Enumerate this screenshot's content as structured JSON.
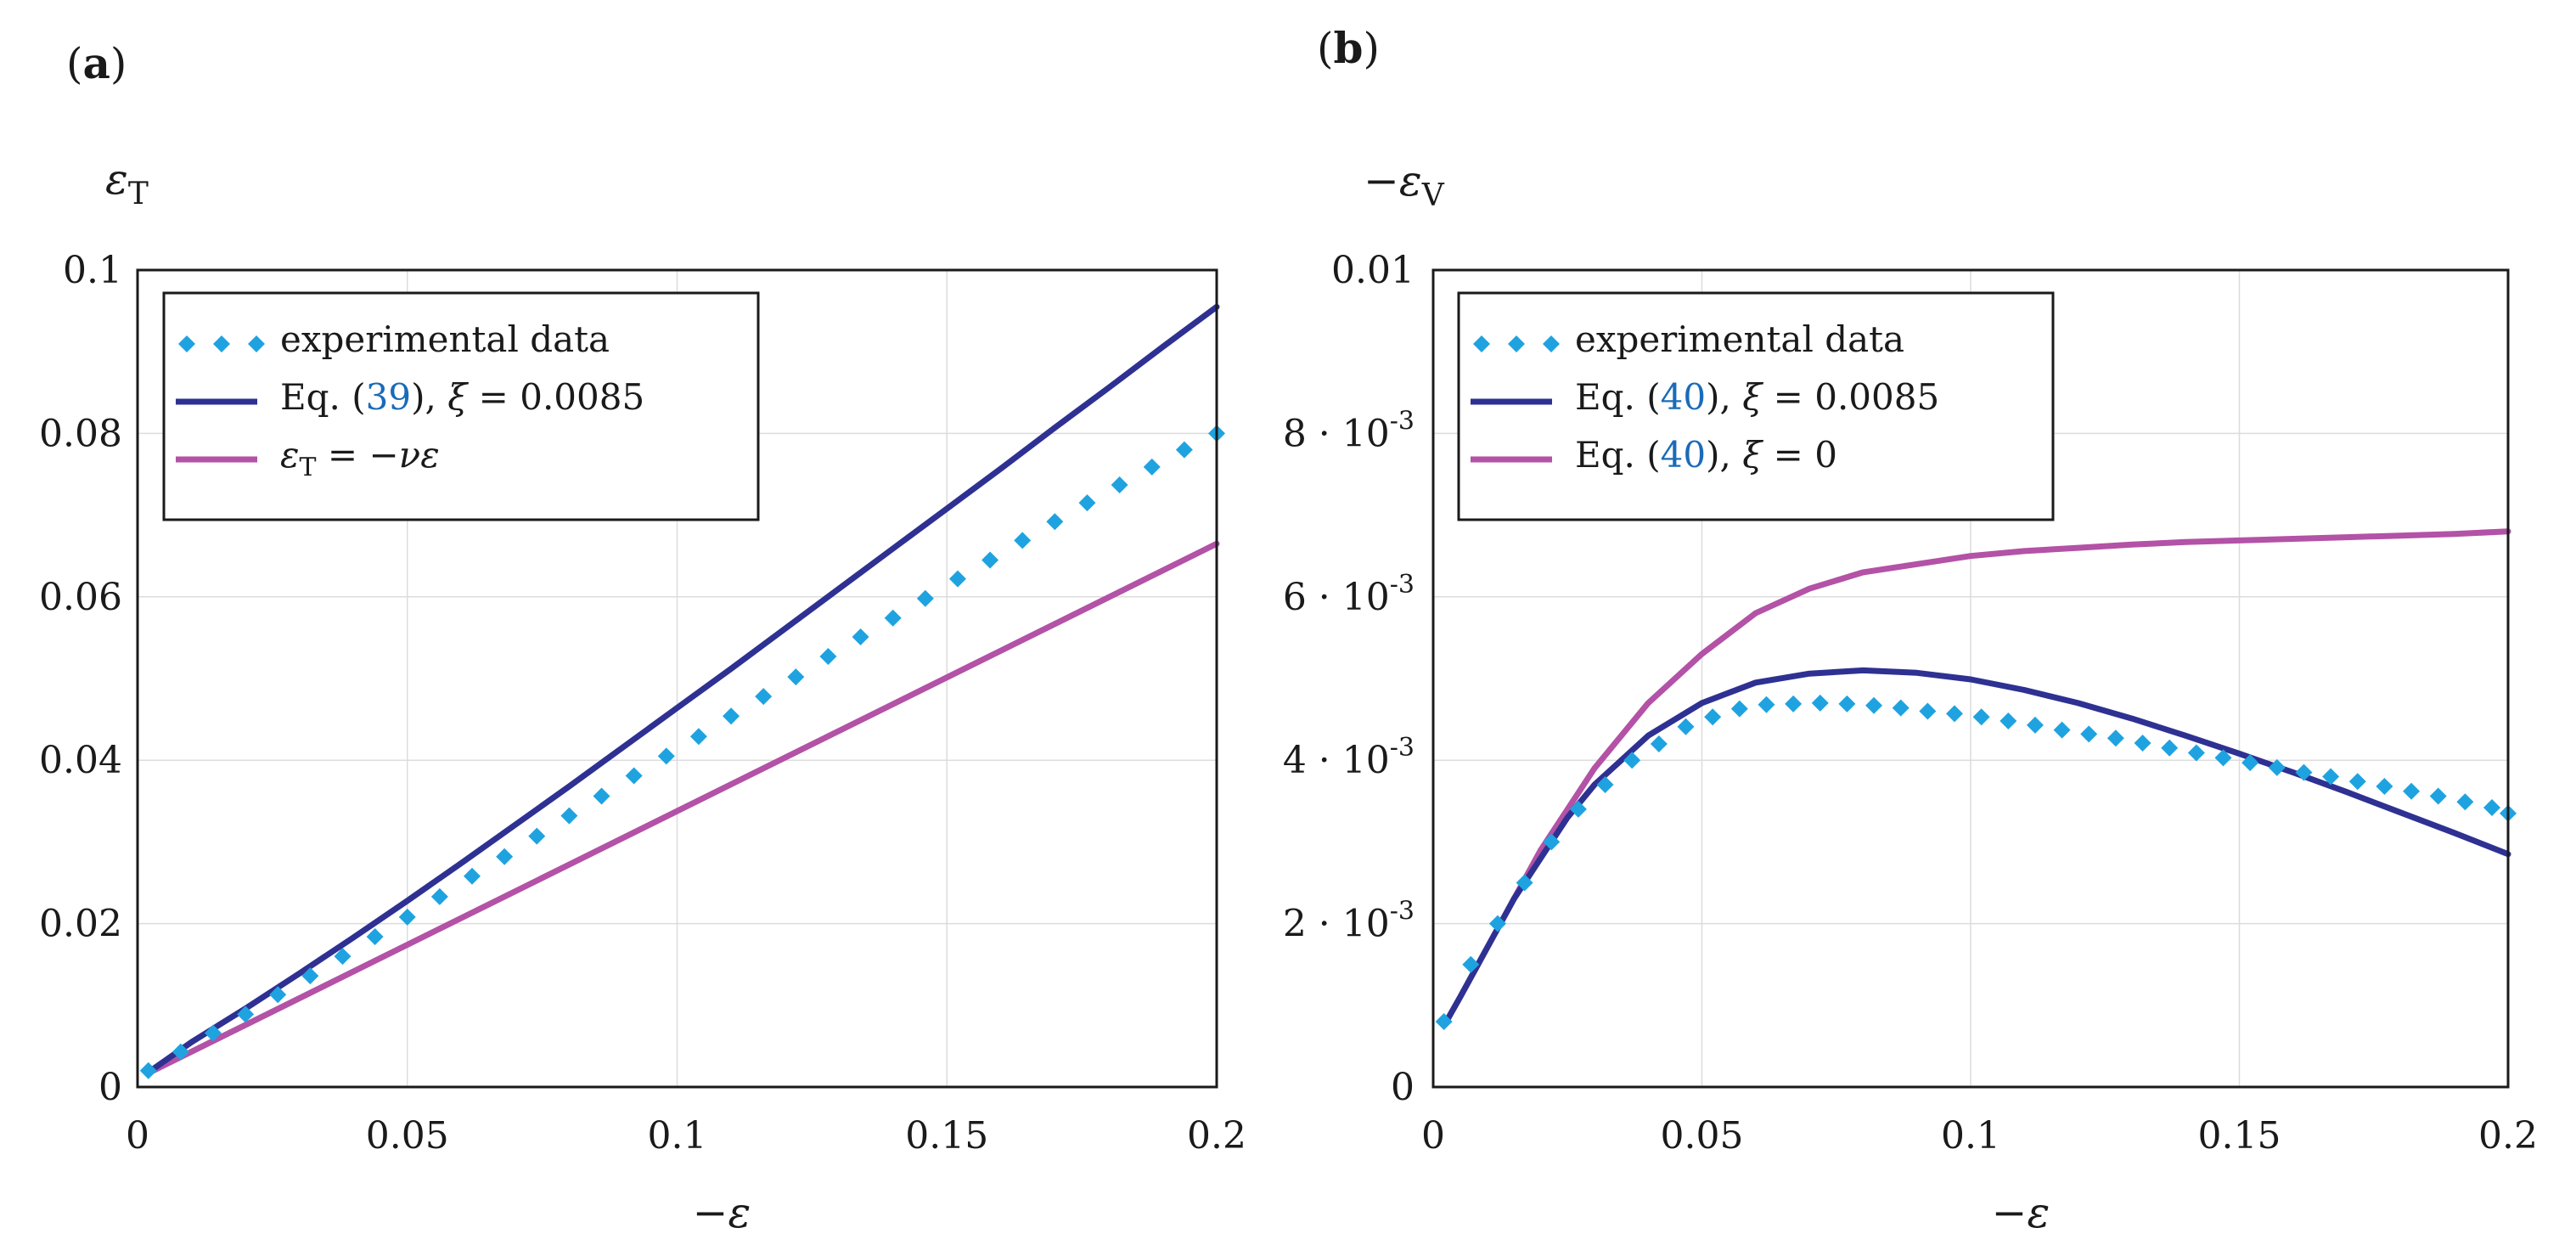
{
  "panels": [
    {
      "id": "a",
      "label_open": "(",
      "label_letter": "a",
      "label_close": ")",
      "ylabel_main": "ε",
      "ylabel_sub": "T",
      "xlabel": "−ε",
      "colors": {
        "experimental": "#1fa3e0",
        "fit": "#2e3192",
        "reference": "#b352a6"
      },
      "legend": {
        "entries": [
          {
            "key": "experimental",
            "parts": [
              {
                "text": "experimental data",
                "style": "plain"
              }
            ]
          },
          {
            "key": "fit",
            "parts": [
              {
                "text": "Eq. (",
                "style": "plain"
              },
              {
                "text": "39",
                "style": "ref"
              },
              {
                "text": "), ",
                "style": "plain"
              },
              {
                "text": "ξ",
                "style": "ital"
              },
              {
                "text": " = 0.0085",
                "style": "plain"
              }
            ]
          },
          {
            "key": "reference",
            "parts": [
              {
                "text": "ε",
                "style": "ital"
              },
              {
                "text": "T",
                "style": "sub"
              },
              {
                "text": " = −",
                "style": "plain"
              },
              {
                "text": "νε",
                "style": "ital"
              }
            ]
          }
        ]
      },
      "chart_data": {
        "type": "line",
        "xlim": [
          0,
          0.2
        ],
        "ylim": [
          0,
          0.1
        ],
        "grid": true,
        "legend_position": "top-left",
        "x_ticks": [
          {
            "value": 0,
            "label": "0"
          },
          {
            "value": 0.05,
            "label": "0.05"
          },
          {
            "value": 0.1,
            "label": "0.1"
          },
          {
            "value": 0.15,
            "label": "0.15"
          },
          {
            "value": 0.2,
            "label": "0.2"
          }
        ],
        "y_ticks": [
          {
            "value": 0,
            "label": "0"
          },
          {
            "value": 0.02,
            "label": "0.02"
          },
          {
            "value": 0.04,
            "label": "0.04"
          },
          {
            "value": 0.06,
            "label": "0.06"
          },
          {
            "value": 0.08,
            "label": "0.08"
          },
          {
            "value": 0.1,
            "label": "0.1"
          }
        ],
        "series": [
          {
            "key": "experimental",
            "style": "dots",
            "x": [
              0.002,
              0.008,
              0.014,
              0.02,
              0.026,
              0.032,
              0.038,
              0.044,
              0.05,
              0.056,
              0.062,
              0.068,
              0.074,
              0.08,
              0.086,
              0.092,
              0.098,
              0.104,
              0.11,
              0.116,
              0.122,
              0.128,
              0.134,
              0.14,
              0.146,
              0.152,
              0.158,
              0.164,
              0.17,
              0.176,
              0.182,
              0.188,
              0.194,
              0.2
            ],
            "y": [
              0.002,
              0.0043,
              0.0066,
              0.0089,
              0.0113,
              0.0136,
              0.016,
              0.0184,
              0.0208,
              0.0233,
              0.0258,
              0.0282,
              0.0307,
              0.0332,
              0.0356,
              0.0381,
              0.0405,
              0.0429,
              0.0454,
              0.0478,
              0.0502,
              0.0527,
              0.0551,
              0.0574,
              0.0598,
              0.0622,
              0.0645,
              0.0669,
              0.0692,
              0.0715,
              0.0737,
              0.0759,
              0.078,
              0.08
            ]
          },
          {
            "key": "fit",
            "style": "line",
            "x": [
              0.002,
              0.01,
              0.02,
              0.03,
              0.04,
              0.05,
              0.06,
              0.07,
              0.08,
              0.09,
              0.1,
              0.11,
              0.12,
              0.13,
              0.14,
              0.15,
              0.16,
              0.17,
              0.18,
              0.19,
              0.2
            ],
            "y": [
              0.0018,
              0.0055,
              0.0096,
              0.0139,
              0.0183,
              0.0228,
              0.0274,
              0.0321,
              0.0368,
              0.0416,
              0.0464,
              0.0512,
              0.0561,
              0.061,
              0.0659,
              0.0708,
              0.0757,
              0.0807,
              0.0856,
              0.0906,
              0.0955
            ]
          },
          {
            "key": "reference",
            "style": "line",
            "x": [
              0.002,
              0.2
            ],
            "y": [
              0.0017,
              0.0665
            ]
          }
        ]
      }
    },
    {
      "id": "b",
      "label_open": "(",
      "label_letter": "b",
      "label_close": ")",
      "ylabel_main": "−ε",
      "ylabel_sub": "V",
      "xlabel": "−ε",
      "colors": {
        "experimental": "#1fa3e0",
        "fit": "#2e3192",
        "reference": "#b352a6"
      },
      "legend": {
        "entries": [
          {
            "key": "experimental",
            "parts": [
              {
                "text": "experimental data",
                "style": "plain"
              }
            ]
          },
          {
            "key": "fit",
            "parts": [
              {
                "text": "Eq. (",
                "style": "plain"
              },
              {
                "text": "40",
                "style": "ref"
              },
              {
                "text": "), ",
                "style": "plain"
              },
              {
                "text": "ξ",
                "style": "ital"
              },
              {
                "text": " = 0.0085",
                "style": "plain"
              }
            ]
          },
          {
            "key": "reference",
            "parts": [
              {
                "text": "Eq. (",
                "style": "plain"
              },
              {
                "text": "40",
                "style": "ref"
              },
              {
                "text": "), ",
                "style": "plain"
              },
              {
                "text": "ξ",
                "style": "ital"
              },
              {
                "text": " = 0",
                "style": "plain"
              }
            ]
          }
        ]
      },
      "chart_data": {
        "type": "line",
        "xlim": [
          0,
          0.2
        ],
        "ylim": [
          0,
          0.01
        ],
        "grid": true,
        "legend_position": "top-left",
        "x_ticks": [
          {
            "value": 0,
            "label": "0"
          },
          {
            "value": 0.05,
            "label": "0.05"
          },
          {
            "value": 0.1,
            "label": "0.1"
          },
          {
            "value": 0.15,
            "label": "0.15"
          },
          {
            "value": 0.2,
            "label": "0.2"
          }
        ],
        "y_ticks": [
          {
            "value": 0,
            "label": "0"
          },
          {
            "value": 0.002,
            "mantissa": "2 · 10",
            "exponent": "-3"
          },
          {
            "value": 0.004,
            "mantissa": "4 · 10",
            "exponent": "-3"
          },
          {
            "value": 0.006,
            "mantissa": "6 · 10",
            "exponent": "-3"
          },
          {
            "value": 0.008,
            "mantissa": "8 · 10",
            "exponent": "-3"
          },
          {
            "value": 0.01,
            "label": "0.01"
          }
        ],
        "series": [
          {
            "key": "experimental",
            "style": "dots",
            "x": [
              0.002,
              0.007,
              0.012,
              0.017,
              0.022,
              0.027,
              0.032,
              0.037,
              0.042,
              0.047,
              0.052,
              0.057,
              0.062,
              0.067,
              0.072,
              0.077,
              0.082,
              0.087,
              0.092,
              0.097,
              0.102,
              0.107,
              0.112,
              0.117,
              0.122,
              0.127,
              0.132,
              0.137,
              0.142,
              0.147,
              0.152,
              0.157,
              0.162,
              0.167,
              0.172,
              0.177,
              0.182,
              0.187,
              0.192,
              0.197,
              0.2
            ],
            "y": [
              0.0008,
              0.0015,
              0.002,
              0.0025,
              0.003,
              0.0034,
              0.0037,
              0.004,
              0.0042,
              0.00441,
              0.00453,
              0.00463,
              0.00468,
              0.00469,
              0.0047,
              0.00469,
              0.00467,
              0.00464,
              0.0046,
              0.00457,
              0.00453,
              0.00448,
              0.00443,
              0.00437,
              0.00432,
              0.00427,
              0.00421,
              0.00415,
              0.00409,
              0.00403,
              0.00397,
              0.00391,
              0.00385,
              0.0038,
              0.00374,
              0.00368,
              0.00362,
              0.00356,
              0.00349,
              0.00342,
              0.00335
            ]
          },
          {
            "key": "fit",
            "style": "line",
            "x": [
              0.002,
              0.005,
              0.01,
              0.015,
              0.02,
              0.025,
              0.03,
              0.04,
              0.05,
              0.06,
              0.07,
              0.08,
              0.09,
              0.1,
              0.11,
              0.12,
              0.13,
              0.14,
              0.15,
              0.16,
              0.17,
              0.18,
              0.19,
              0.2
            ],
            "y": [
              0.00075,
              0.0011,
              0.0017,
              0.0023,
              0.0028,
              0.0033,
              0.0037,
              0.0043,
              0.0047,
              0.00495,
              0.00506,
              0.0051,
              0.00507,
              0.00499,
              0.00486,
              0.0047,
              0.00451,
              0.0043,
              0.00408,
              0.00385,
              0.00361,
              0.00336,
              0.00311,
              0.00285
            ]
          },
          {
            "key": "reference",
            "style": "line",
            "x": [
              0.002,
              0.005,
              0.01,
              0.015,
              0.02,
              0.025,
              0.03,
              0.04,
              0.05,
              0.06,
              0.07,
              0.08,
              0.09,
              0.1,
              0.11,
              0.12,
              0.13,
              0.14,
              0.15,
              0.16,
              0.17,
              0.18,
              0.19,
              0.2
            ],
            "y": [
              0.00075,
              0.0011,
              0.0017,
              0.0023,
              0.0029,
              0.0034,
              0.0039,
              0.0047,
              0.0053,
              0.0058,
              0.0061,
              0.0063,
              0.0064,
              0.0065,
              0.00656,
              0.0066,
              0.00664,
              0.00667,
              0.00669,
              0.00671,
              0.00673,
              0.00675,
              0.00677,
              0.0068
            ]
          }
        ]
      }
    }
  ]
}
